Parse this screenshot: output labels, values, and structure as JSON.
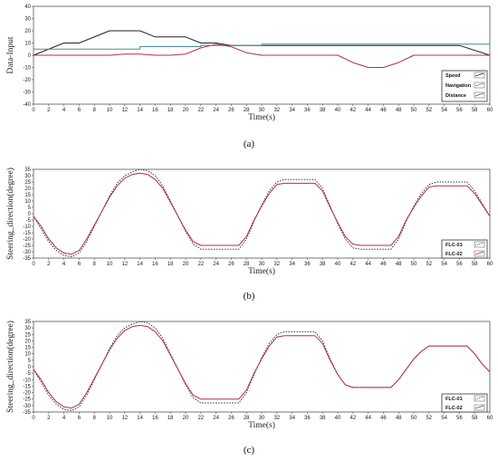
{
  "captions": [
    "(a)",
    "(b)",
    "(c)"
  ],
  "chart_data": [
    {
      "type": "line",
      "xlabel": "Time(s)",
      "ylabel": "Data-Input",
      "xlim": [
        0,
        60
      ],
      "ylim": [
        -40,
        40
      ],
      "xticks": [
        0,
        2,
        4,
        6,
        8,
        10,
        12,
        14,
        16,
        18,
        20,
        22,
        24,
        26,
        28,
        30,
        32,
        34,
        36,
        38,
        40,
        42,
        44,
        46,
        48,
        50,
        52,
        54,
        56,
        58,
        60
      ],
      "yticks": [
        -40,
        -30,
        -20,
        -10,
        0,
        10,
        20,
        30,
        40
      ],
      "grid": false,
      "legend_position": "bottom-right",
      "series": [
        {
          "name": "Speed",
          "color": "#222222",
          "style": "solid",
          "x": [
            0,
            4,
            6,
            10,
            14,
            16,
            20,
            22,
            24,
            26,
            56,
            60
          ],
          "y": [
            0,
            10,
            10,
            20,
            20,
            15,
            15,
            10,
            10,
            8,
            8,
            0
          ]
        },
        {
          "name": "Navigation",
          "color": "#4a8a96",
          "style": "solid",
          "x": [
            0,
            14,
            14,
            22,
            22,
            30,
            30,
            56,
            60
          ],
          "y": [
            5,
            5,
            7,
            7,
            8,
            8,
            9,
            9,
            9
          ]
        },
        {
          "name": "Distance",
          "color": "#b03040",
          "style": "solid",
          "x": [
            0,
            10,
            12,
            14,
            16,
            18,
            20,
            22,
            24,
            26,
            28,
            30,
            32,
            36,
            40,
            42,
            44,
            46,
            48,
            50,
            52,
            56,
            60
          ],
          "y": [
            0,
            0,
            1,
            1,
            0,
            0,
            1,
            6,
            9,
            7,
            2,
            0,
            0,
            0,
            0,
            -6,
            -10,
            -10,
            -6,
            0,
            0,
            0,
            0
          ]
        }
      ]
    },
    {
      "type": "line",
      "xlabel": "Time(s)",
      "ylabel": "Steering_direction(degree)",
      "xlim": [
        0,
        60
      ],
      "ylim": [
        -35,
        35
      ],
      "xticks": [
        0,
        2,
        4,
        6,
        8,
        10,
        12,
        14,
        16,
        18,
        20,
        22,
        24,
        26,
        28,
        30,
        32,
        34,
        36,
        38,
        40,
        42,
        44,
        46,
        48,
        50,
        52,
        54,
        56,
        58,
        60
      ],
      "yticks": [
        -35,
        -30,
        -25,
        -20,
        -15,
        -10,
        -5,
        0,
        5,
        10,
        15,
        20,
        25,
        30,
        35
      ],
      "grid": false,
      "legend_position": "bottom-right",
      "series": [
        {
          "name": "FLC-01",
          "color": "#333333",
          "style": "dotted",
          "x": [
            0,
            1,
            2,
            3,
            4,
            5,
            6,
            7,
            8,
            9,
            10,
            11,
            12,
            13,
            14,
            15,
            16,
            17,
            18,
            19,
            20,
            21,
            22,
            23,
            27,
            28,
            29,
            30,
            31,
            32,
            33,
            37,
            38,
            39,
            40,
            41,
            42,
            43,
            47,
            48,
            49,
            50,
            51,
            52,
            53,
            57,
            58,
            59,
            60
          ],
          "y": [
            -2,
            -12,
            -22,
            -29,
            -33,
            -34,
            -31,
            -22,
            -10,
            2,
            14,
            24,
            30,
            33,
            35,
            34,
            30,
            22,
            10,
            -2,
            -14,
            -24,
            -28,
            -28,
            -28,
            -20,
            -6,
            7,
            18,
            25,
            27,
            27,
            20,
            6,
            -8,
            -20,
            -27,
            -28,
            -28,
            -20,
            -6,
            6,
            16,
            23,
            25,
            25,
            18,
            8,
            -2
          ]
        },
        {
          "name": "FLC-02",
          "color": "#b03040",
          "style": "solid",
          "x": [
            0,
            1,
            2,
            3,
            4,
            5,
            6,
            7,
            8,
            9,
            10,
            11,
            12,
            13,
            14,
            15,
            16,
            17,
            18,
            19,
            20,
            21,
            22,
            23,
            27,
            28,
            29,
            30,
            31,
            32,
            33,
            37,
            38,
            39,
            40,
            41,
            42,
            43,
            47,
            48,
            49,
            50,
            51,
            52,
            53,
            57,
            58,
            59,
            60
          ],
          "y": [
            -2,
            -10,
            -20,
            -27,
            -31,
            -32,
            -29,
            -20,
            -9,
            2,
            13,
            22,
            28,
            31,
            32,
            31,
            27,
            20,
            9,
            -2,
            -13,
            -22,
            -25,
            -25,
            -25,
            -18,
            -5,
            6,
            16,
            23,
            24,
            24,
            18,
            5,
            -7,
            -18,
            -24,
            -25,
            -25,
            -18,
            -5,
            5,
            14,
            21,
            22,
            22,
            16,
            7,
            -2
          ]
        }
      ]
    },
    {
      "type": "line",
      "xlabel": "Time(s)",
      "ylabel": "Steering_direction(degree)",
      "xlim": [
        0,
        60
      ],
      "ylim": [
        -35,
        35
      ],
      "xticks": [
        0,
        2,
        4,
        6,
        8,
        10,
        12,
        14,
        16,
        18,
        20,
        22,
        24,
        26,
        28,
        30,
        32,
        34,
        36,
        38,
        40,
        42,
        44,
        46,
        48,
        50,
        52,
        54,
        56,
        58,
        60
      ],
      "yticks": [
        -35,
        -30,
        -25,
        -20,
        -15,
        -10,
        -5,
        0,
        5,
        10,
        15,
        20,
        25,
        30,
        35
      ],
      "grid": false,
      "legend_position": "bottom-right",
      "series": [
        {
          "name": "FLC-01",
          "color": "#333333",
          "style": "dotted",
          "x": [
            0,
            1,
            2,
            3,
            4,
            5,
            6,
            7,
            8,
            9,
            10,
            11,
            12,
            13,
            14,
            15,
            16,
            17,
            18,
            19,
            20,
            21,
            22,
            23,
            27,
            28,
            29,
            30,
            31,
            32,
            33,
            37,
            38,
            39,
            40,
            41,
            42,
            47,
            48,
            49,
            50,
            51,
            52,
            57,
            58,
            59,
            60
          ],
          "y": [
            -2,
            -12,
            -22,
            -29,
            -33,
            -34,
            -31,
            -22,
            -10,
            2,
            14,
            24,
            30,
            33,
            35,
            34,
            30,
            22,
            10,
            -2,
            -14,
            -24,
            -28,
            -28,
            -28,
            -20,
            -6,
            7,
            18,
            25,
            27,
            27,
            20,
            6,
            -6,
            -14,
            -16,
            -16,
            -10,
            -2,
            6,
            12,
            16,
            16,
            10,
            2,
            -4
          ]
        },
        {
          "name": "FLC-02",
          "color": "#b03040",
          "style": "solid",
          "x": [
            0,
            1,
            2,
            3,
            4,
            5,
            6,
            7,
            8,
            9,
            10,
            11,
            12,
            13,
            14,
            15,
            16,
            17,
            18,
            19,
            20,
            21,
            22,
            23,
            27,
            28,
            29,
            30,
            31,
            32,
            33,
            37,
            38,
            39,
            40,
            41,
            42,
            47,
            48,
            49,
            50,
            51,
            52,
            57,
            58,
            59,
            60
          ],
          "y": [
            -2,
            -10,
            -20,
            -27,
            -31,
            -32,
            -29,
            -20,
            -9,
            2,
            13,
            22,
            28,
            31,
            32,
            31,
            27,
            20,
            9,
            -2,
            -13,
            -22,
            -25,
            -25,
            -25,
            -18,
            -5,
            6,
            16,
            23,
            24,
            24,
            18,
            5,
            -6,
            -14,
            -16,
            -16,
            -10,
            -2,
            6,
            12,
            16,
            16,
            10,
            2,
            -4
          ]
        }
      ]
    }
  ]
}
